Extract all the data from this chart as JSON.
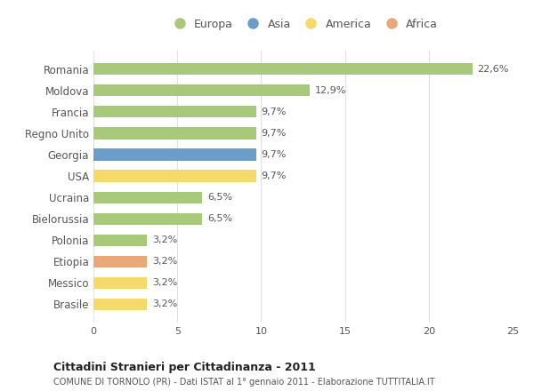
{
  "categories": [
    "Romania",
    "Moldova",
    "Francia",
    "Regno Unito",
    "Georgia",
    "USA",
    "Ucraina",
    "Bielorussia",
    "Polonia",
    "Etiopia",
    "Messico",
    "Brasile"
  ],
  "values": [
    22.6,
    12.9,
    9.7,
    9.7,
    9.7,
    9.7,
    6.5,
    6.5,
    3.2,
    3.2,
    3.2,
    3.2
  ],
  "labels": [
    "22,6%",
    "12,9%",
    "9,7%",
    "9,7%",
    "9,7%",
    "9,7%",
    "6,5%",
    "6,5%",
    "3,2%",
    "3,2%",
    "3,2%",
    "3,2%"
  ],
  "continents": [
    "Europa",
    "Europa",
    "Europa",
    "Europa",
    "Asia",
    "America",
    "Europa",
    "Europa",
    "Europa",
    "Africa",
    "America",
    "America"
  ],
  "colors": {
    "Europa": "#a8c87a",
    "Asia": "#6b9dc8",
    "America": "#f5d96b",
    "Africa": "#e8a878"
  },
  "xlim": [
    0,
    25
  ],
  "xticks": [
    0,
    5,
    10,
    15,
    20,
    25
  ],
  "title": "Cittadini Stranieri per Cittadinanza - 2011",
  "subtitle": "COMUNE DI TORNOLO (PR) - Dati ISTAT al 1° gennaio 2011 - Elaborazione TUTTITALIA.IT",
  "background_color": "#ffffff",
  "bar_height": 0.55,
  "grid_color": "#e0e0e0",
  "text_color": "#555555",
  "label_color": "#555555",
  "legend_order": [
    "Europa",
    "Asia",
    "America",
    "Africa"
  ]
}
